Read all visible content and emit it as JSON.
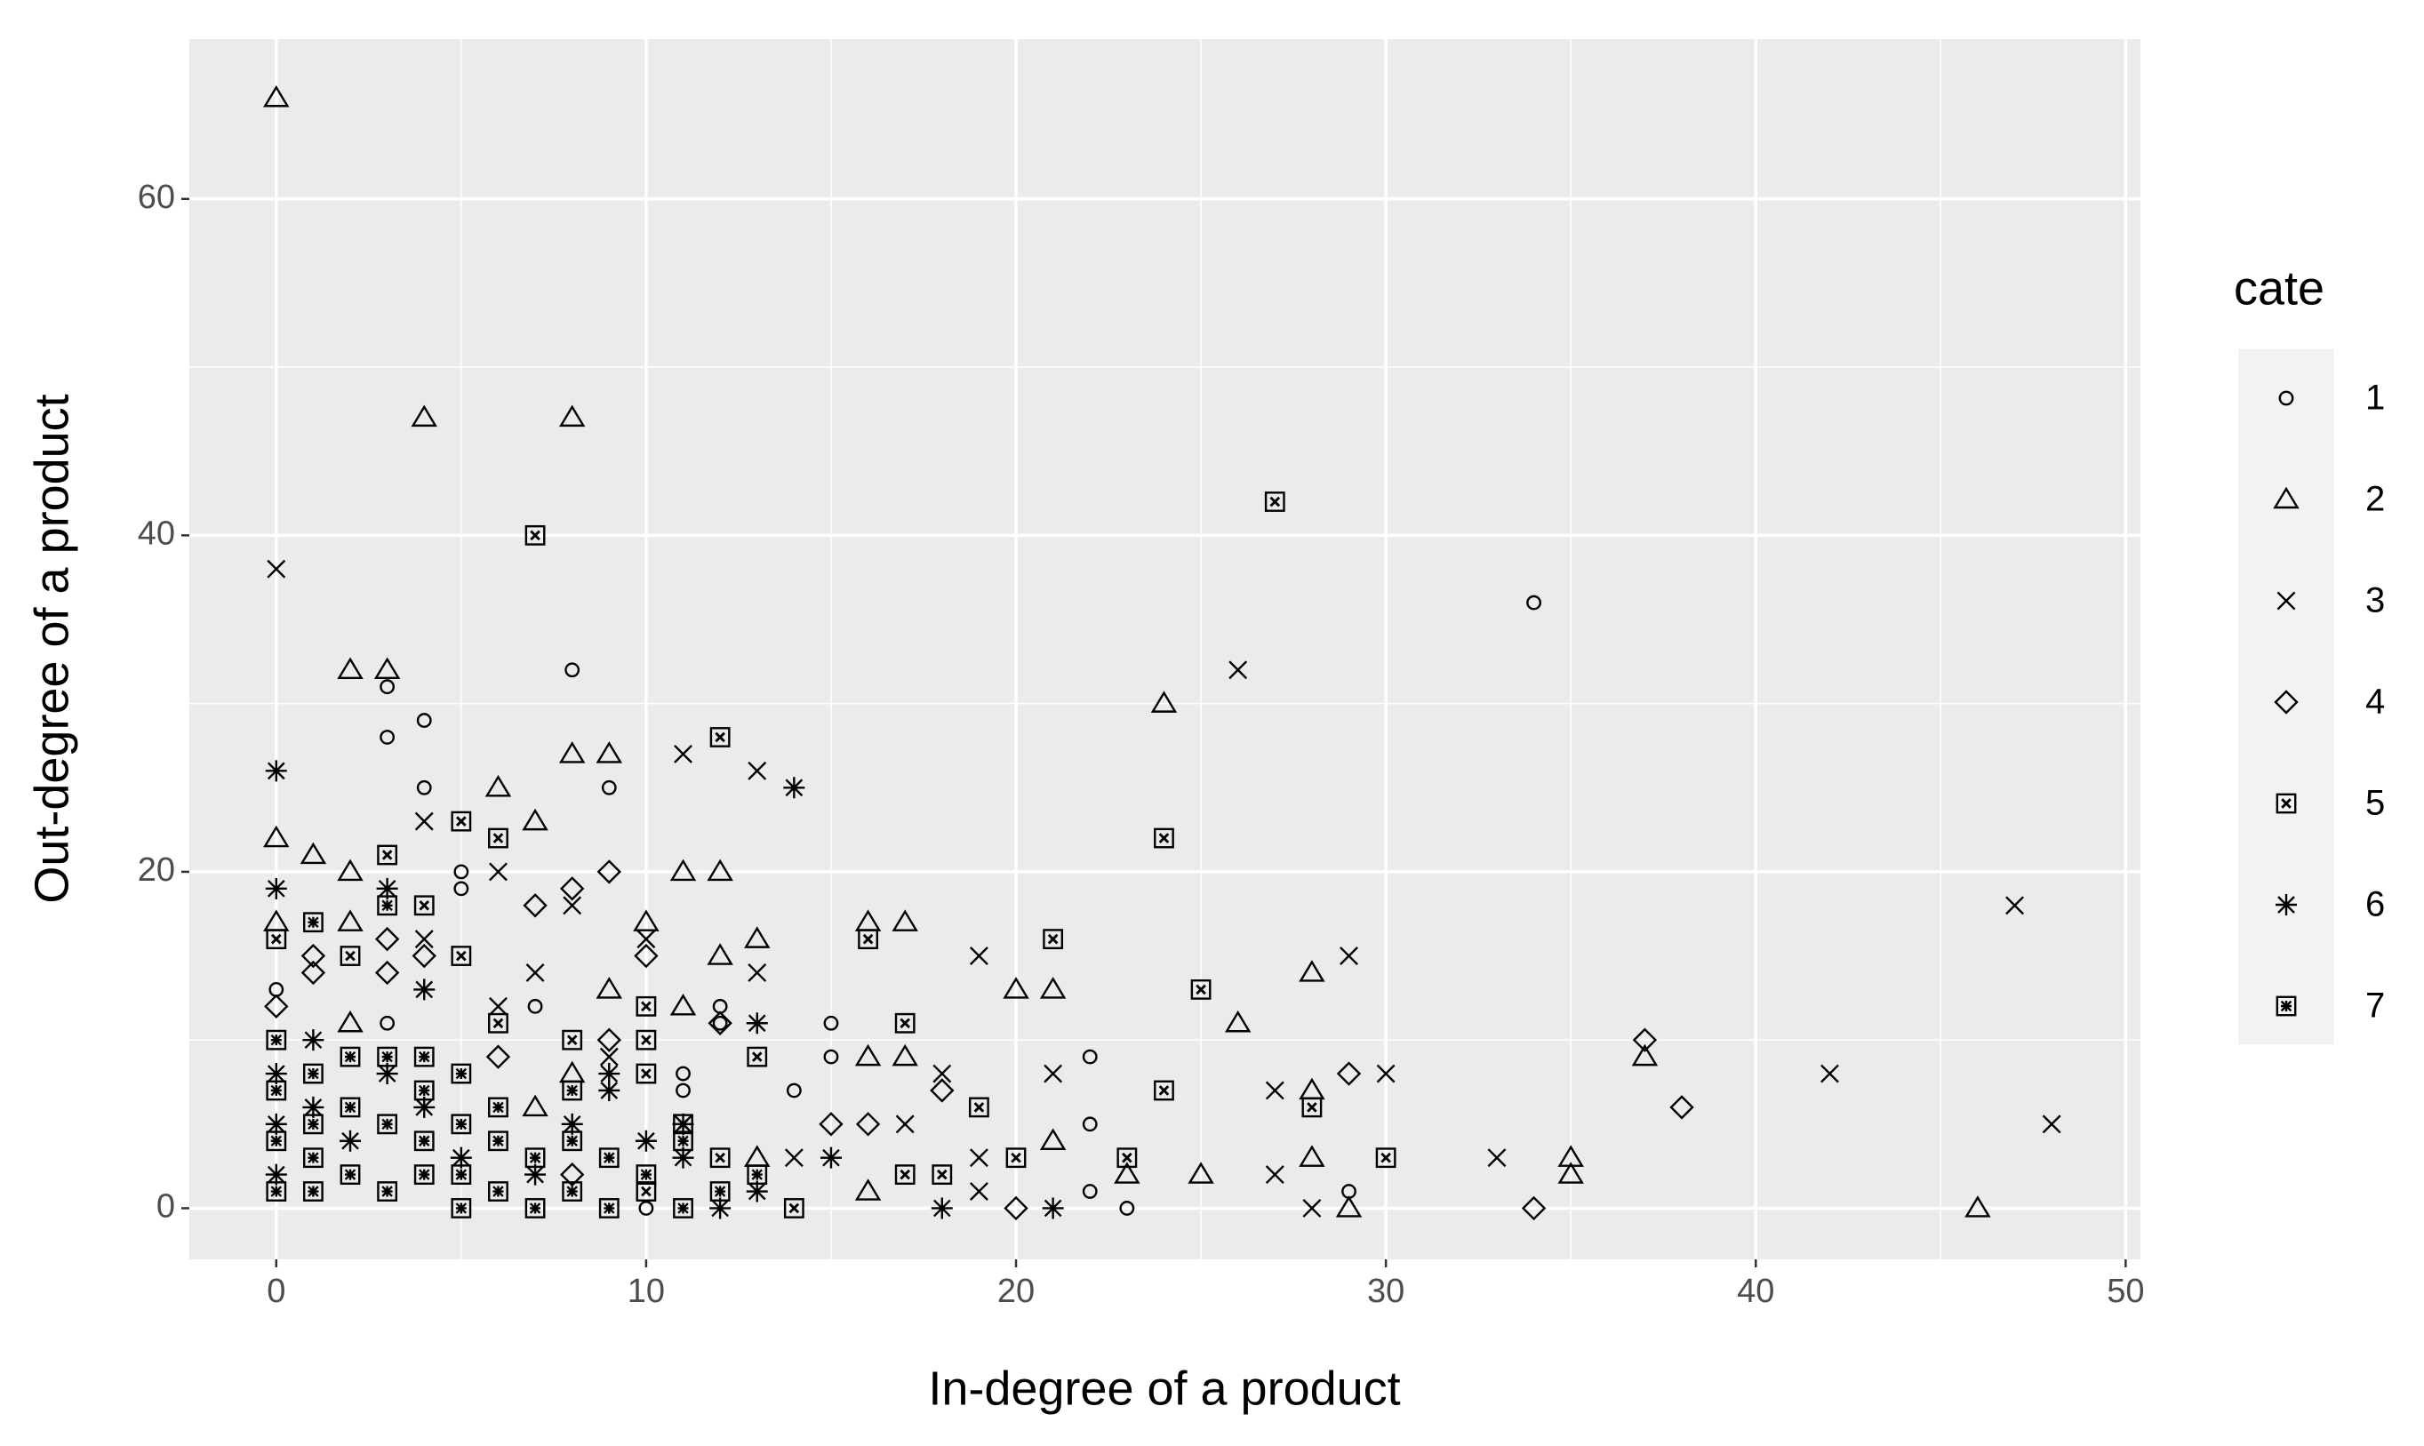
{
  "chart_data": {
    "type": "scatter",
    "x_label": "In-degree of a product",
    "y_label": "Out-degree of a product",
    "legend_title": "cate",
    "legend_position": "right",
    "grid": true,
    "xlim": [
      -2.35,
      50.4
    ],
    "ylim": [
      -3.04,
      69.5
    ],
    "xticks": [
      0,
      10,
      20,
      30,
      40,
      50
    ],
    "yticks": [
      0,
      20,
      40,
      60
    ],
    "series": [
      {
        "name": "1",
        "shape": "circle",
        "color": "#000000",
        "x": [
          34,
          8,
          3,
          4,
          3,
          4,
          9,
          5,
          7,
          12,
          15,
          15,
          22,
          22,
          23,
          22,
          29,
          14,
          11,
          11,
          10,
          3,
          5,
          0,
          12
        ],
        "values": [
          36,
          32,
          31,
          29,
          28,
          25,
          25,
          20,
          12,
          12,
          11,
          9,
          9,
          5,
          0,
          1,
          1,
          7,
          8,
          7,
          0,
          11,
          19,
          13,
          11
        ]
      },
      {
        "name": "2",
        "shape": "triangle",
        "color": "#000000",
        "x": [
          0,
          4,
          8,
          2,
          3,
          8,
          9,
          6,
          7,
          0,
          1,
          2,
          11,
          12,
          10,
          16,
          17,
          12,
          13,
          20,
          21,
          9,
          24,
          28,
          26,
          16,
          17,
          37,
          35,
          35,
          46,
          25,
          29,
          28,
          28,
          21,
          13,
          23,
          16,
          8,
          7,
          2,
          11,
          0,
          2
        ],
        "values": [
          66,
          47,
          47,
          32,
          32,
          27,
          27,
          25,
          23,
          22,
          21,
          20,
          20,
          20,
          17,
          17,
          17,
          15,
          16,
          13,
          13,
          13,
          30,
          14,
          11,
          9,
          9,
          9,
          3,
          2,
          0,
          2,
          0,
          7,
          3,
          4,
          3,
          2,
          1,
          8,
          6,
          11,
          12,
          17,
          17
        ]
      },
      {
        "name": "3",
        "shape": "cross",
        "color": "#000000",
        "x": [
          0,
          26,
          11,
          13,
          4,
          6,
          8,
          47,
          29,
          19,
          13,
          7,
          42,
          30,
          21,
          48,
          33,
          27,
          27,
          28,
          19,
          19,
          18,
          17,
          6,
          10,
          4,
          9,
          14
        ],
        "values": [
          38,
          32,
          27,
          26,
          23,
          20,
          18,
          18,
          15,
          15,
          14,
          14,
          8,
          8,
          8,
          5,
          3,
          7,
          2,
          0,
          3,
          1,
          8,
          5,
          12,
          16,
          16,
          9,
          3
        ]
      },
      {
        "name": "4",
        "shape": "diamond",
        "color": "#000000",
        "x": [
          9,
          7,
          8,
          3,
          4,
          1,
          1,
          3,
          10,
          0,
          6,
          12,
          16,
          15,
          18,
          20,
          29,
          37,
          38,
          34,
          9,
          8
        ],
        "values": [
          20,
          18,
          19,
          16,
          15,
          15,
          14,
          14,
          15,
          12,
          9,
          11,
          5,
          5,
          7,
          0,
          8,
          10,
          6,
          0,
          10,
          2
        ]
      },
      {
        "name": "5",
        "shape": "square-cross",
        "color": "#000000",
        "x": [
          27,
          7,
          12,
          24,
          5,
          6,
          3,
          4,
          5,
          2,
          16,
          21,
          25,
          17,
          6,
          13,
          24,
          28,
          19,
          30,
          20,
          23,
          18,
          14,
          10,
          10,
          10,
          10,
          8,
          11,
          12,
          0,
          17
        ],
        "values": [
          42,
          40,
          28,
          22,
          23,
          22,
          21,
          18,
          15,
          15,
          16,
          16,
          13,
          11,
          11,
          9,
          7,
          6,
          6,
          3,
          3,
          3,
          2,
          0,
          12,
          10,
          8,
          1,
          10,
          5,
          3,
          16,
          2
        ]
      },
      {
        "name": "6",
        "shape": "asterisk",
        "color": "#000000",
        "x": [
          0,
          14,
          0,
          3,
          4,
          13,
          9,
          18,
          21,
          15,
          13,
          12,
          11,
          1,
          0,
          0,
          0,
          1,
          2,
          3,
          4,
          5,
          9,
          7,
          8,
          11,
          10
        ],
        "values": [
          26,
          25,
          19,
          19,
          13,
          11,
          7,
          0,
          0,
          3,
          1,
          0,
          5,
          10,
          8,
          5,
          2,
          6,
          4,
          8,
          6,
          3,
          8,
          2,
          5,
          3,
          4
        ]
      },
      {
        "name": "7",
        "shape": "square-asterisk",
        "color": "#000000",
        "x": [
          1,
          3,
          2,
          1,
          0,
          0,
          0,
          0,
          1,
          1,
          1,
          2,
          2,
          3,
          3,
          3,
          4,
          4,
          4,
          4,
          5,
          5,
          5,
          5,
          6,
          6,
          6,
          7,
          7,
          8,
          8,
          8,
          9,
          9,
          10,
          11,
          11,
          12,
          13
        ],
        "values": [
          17,
          18,
          9,
          8,
          10,
          7,
          4,
          1,
          1,
          3,
          5,
          2,
          6,
          1,
          5,
          9,
          2,
          4,
          7,
          9,
          0,
          2,
          5,
          8,
          1,
          4,
          6,
          0,
          3,
          1,
          4,
          7,
          0,
          3,
          2,
          0,
          4,
          1,
          2
        ]
      }
    ]
  }
}
